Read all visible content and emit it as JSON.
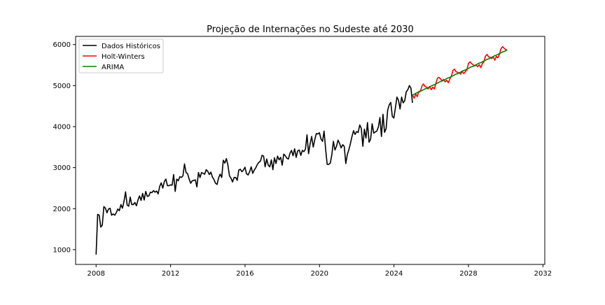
{
  "chart_data": {
    "type": "line",
    "title": "Projeção de Internações no Sudeste até 2030",
    "xlabel": "",
    "ylabel": "",
    "xlim": [
      2006.9,
      2032.1
    ],
    "ylim": [
      640,
      6200
    ],
    "x_ticks": [
      2008,
      2012,
      2016,
      2020,
      2024,
      2028,
      2032
    ],
    "y_ticks": [
      1000,
      2000,
      3000,
      4000,
      5000,
      6000
    ],
    "legend_position": "top-left",
    "grid": false,
    "colors": {
      "historicos": "#000000",
      "holt_winters": "#ff0000",
      "arima": "#008000"
    },
    "series": [
      {
        "name": "Dados Históricos",
        "color": "#000000",
        "x_start": 2008.0,
        "step": 0.0833,
        "values": [
          880,
          1860,
          1840,
          1550,
          1600,
          2050,
          2010,
          1900,
          1990,
          2010,
          1840,
          1870,
          1840,
          1900,
          1990,
          1950,
          2100,
          2010,
          2180,
          2410,
          2090,
          2060,
          2280,
          2100,
          2100,
          2150,
          2070,
          2210,
          2310,
          2200,
          2370,
          2210,
          2420,
          2300,
          2310,
          2400,
          2390,
          2440,
          2400,
          2430,
          2360,
          2540,
          2630,
          2500,
          2660,
          2720,
          2560,
          2560,
          2580,
          2570,
          2830,
          2420,
          2720,
          2680,
          2780,
          2760,
          2800,
          3090,
          2880,
          2850,
          2720,
          2620,
          2680,
          2690,
          2700,
          2530,
          2880,
          2760,
          2880,
          2860,
          2840,
          2950,
          2910,
          2830,
          2890,
          2770,
          2710,
          2620,
          2590,
          2750,
          2840,
          2760,
          3180,
          3110,
          3220,
          3060,
          2800,
          2740,
          2650,
          2760,
          2760,
          2690,
          2940,
          2960,
          2900,
          2940,
          3010,
          2850,
          2820,
          2900,
          3020,
          2860,
          2940,
          3000,
          3080,
          3130,
          3160,
          3300,
          3280,
          3020,
          3210,
          3060,
          3020,
          3190,
          2950,
          3240,
          3100,
          3280,
          3190,
          3250,
          3060,
          3330,
          3290,
          3230,
          3210,
          3350,
          3420,
          3290,
          3460,
          3250,
          3410,
          3430,
          3300,
          3420,
          3390,
          3450,
          3800,
          3340,
          3580,
          3760,
          3500,
          3680,
          3830,
          3820,
          3850,
          3700,
          3640,
          3890,
          3450,
          3080,
          3080,
          3110,
          3310,
          3640,
          3430,
          3520,
          3670,
          3590,
          3480,
          3560,
          3520,
          3100,
          3320,
          3440,
          3590,
          3760,
          3900,
          3810,
          3880,
          3860,
          4040,
          3960,
          3520,
          3940,
          3720,
          4100,
          3620,
          3690,
          4070,
          3840,
          3870,
          3890,
          3990,
          4220,
          3760,
          4300,
          3860,
          3950,
          4400,
          4530,
          4590,
          4250,
          4210,
          4460,
          4720,
          4640,
          4430,
          4720,
          4580,
          4630,
          4850,
          4900,
          5000,
          4940,
          4580
        ]
      },
      {
        "name": "Holt-Winters",
        "color": "#ff0000",
        "x_start": 2025.0,
        "step": 0.0833,
        "values": [
          4770,
          4690,
          4800,
          4730,
          4860,
          4860,
          4990,
          5040,
          4980,
          4960,
          4920,
          4980,
          4900,
          4960,
          4920,
          5050,
          5180,
          5200,
          5160,
          5120,
          5150,
          5090,
          5130,
          5070,
          5160,
          5230,
          5370,
          5400,
          5340,
          5320,
          5310,
          5280,
          5350,
          5290,
          5340,
          5380,
          5540,
          5580,
          5540,
          5510,
          5480,
          5500,
          5460,
          5510,
          5440,
          5540,
          5580,
          5720,
          5760,
          5700,
          5690,
          5660,
          5700,
          5620,
          5710,
          5680,
          5760,
          5900,
          5950,
          5910,
          5880,
          5860
        ]
      },
      {
        "name": "ARIMA",
        "color": "#008000",
        "x_start": 2025.0,
        "step": 0.0833,
        "values": [
          4770,
          4790,
          4810,
          4830,
          4840,
          4860,
          4880,
          4900,
          4920,
          4930,
          4950,
          4970,
          4990,
          5010,
          5020,
          5040,
          5060,
          5080,
          5100,
          5110,
          5130,
          5150,
          5170,
          5190,
          5200,
          5220,
          5240,
          5260,
          5280,
          5290,
          5310,
          5330,
          5350,
          5370,
          5380,
          5400,
          5420,
          5440,
          5460,
          5470,
          5490,
          5510,
          5530,
          5550,
          5560,
          5580,
          5600,
          5620,
          5640,
          5650,
          5670,
          5690,
          5710,
          5730,
          5740,
          5760,
          5780,
          5800,
          5820,
          5830,
          5850,
          5870
        ]
      }
    ]
  }
}
